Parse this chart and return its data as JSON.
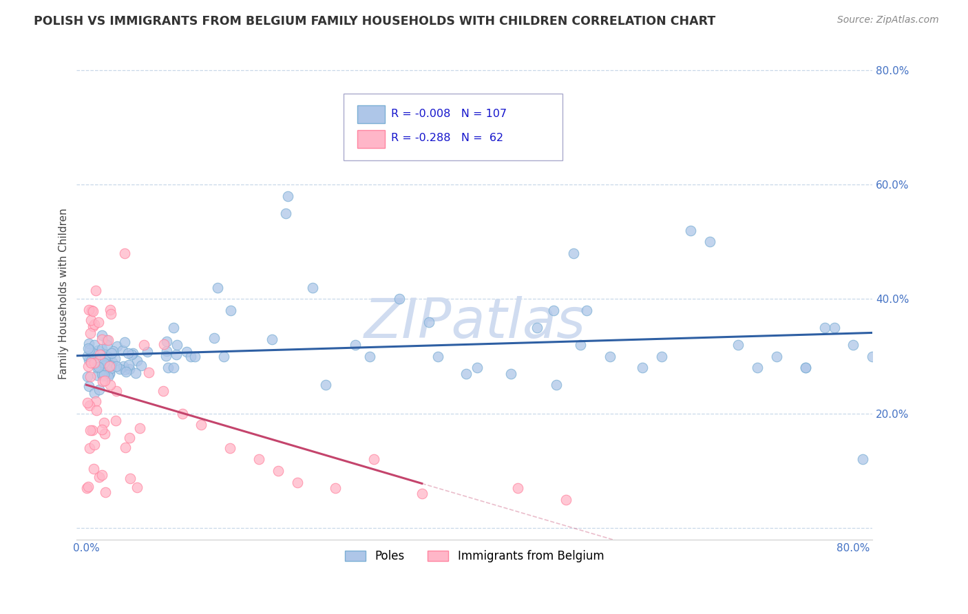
{
  "title": "POLISH VS IMMIGRANTS FROM BELGIUM FAMILY HOUSEHOLDS WITH CHILDREN CORRELATION CHART",
  "source": "Source: ZipAtlas.com",
  "ylabel": "Family Households with Children",
  "legend_label1": "Poles",
  "legend_label2": "Immigrants from Belgium",
  "r1": "-0.008",
  "n1": "107",
  "r2": "-0.288",
  "n2": "62",
  "xlim": [
    -0.01,
    0.82
  ],
  "ylim": [
    -0.02,
    0.84
  ],
  "blue_scatter_color": "#AEC6E8",
  "blue_edge_color": "#7BAFD4",
  "pink_scatter_color": "#FFB6C8",
  "pink_edge_color": "#FF85A0",
  "trend_blue_color": "#2E5FA3",
  "trend_pink_color": "#C4446C",
  "background": "#FFFFFF",
  "grid_color": "#C8D8E8",
  "ytick_color": "#4472C4",
  "xtick_color": "#4472C4",
  "watermark_color": "#D0DCF0",
  "title_color": "#333333",
  "source_color": "#888888"
}
